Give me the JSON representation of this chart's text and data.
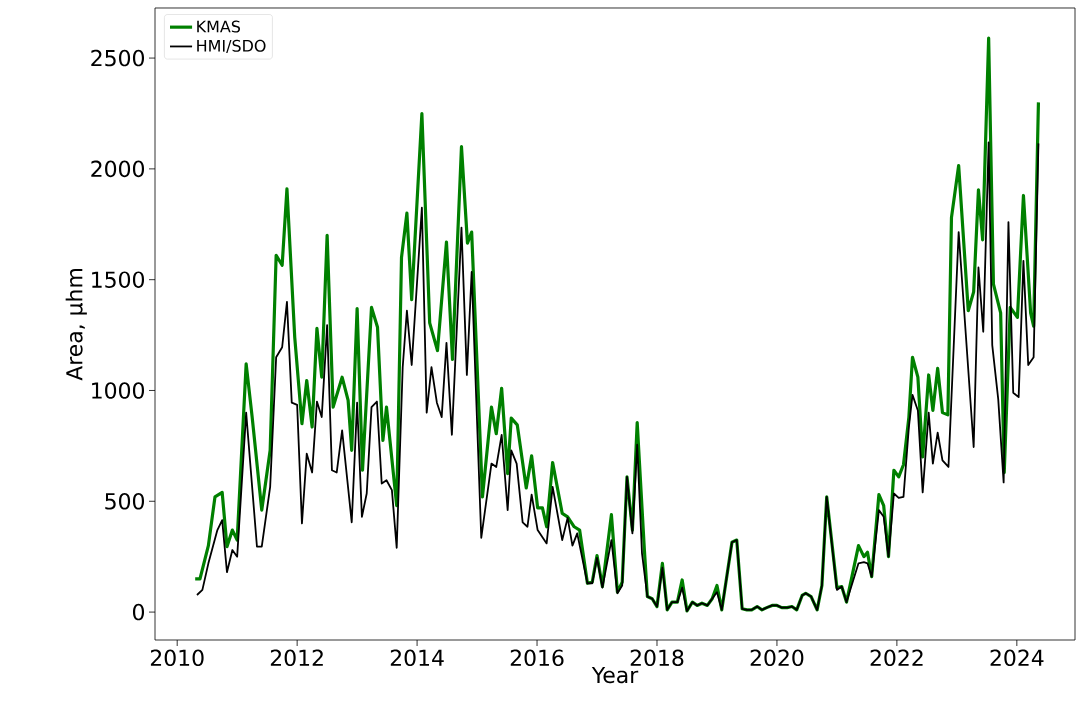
{
  "chart_data": {
    "type": "line",
    "xlabel": "Year",
    "ylabel": "Area, μhm",
    "xlim": [
      2009.63,
      2024.97
    ],
    "ylim": [
      -126,
      2726
    ],
    "xticks": [
      2010,
      2012,
      2014,
      2016,
      2018,
      2020,
      2022,
      2024
    ],
    "yticks": [
      0,
      500,
      1000,
      1500,
      2000,
      2500
    ],
    "grid": false,
    "legend": "top left",
    "marker": "none",
    "line_style": "solid",
    "series": [
      {
        "name": "KMAS",
        "color": "#008000",
        "x": [
          2010.3,
          2010.38,
          2010.52,
          2010.63,
          2010.75,
          2010.83,
          2010.92,
          2011.0,
          2011.15,
          2011.25,
          2011.41,
          2011.55,
          2011.65,
          2011.75,
          2011.83,
          2011.96,
          2012.08,
          2012.16,
          2012.25,
          2012.33,
          2012.41,
          2012.5,
          2012.6,
          2012.75,
          2012.85,
          2012.91,
          2013.0,
          2013.09,
          2013.24,
          2013.34,
          2013.43,
          2013.49,
          2013.66,
          2013.74,
          2013.83,
          2013.91,
          2014.08,
          2014.21,
          2014.34,
          2014.49,
          2014.59,
          2014.74,
          2014.84,
          2014.91,
          2015.09,
          2015.24,
          2015.32,
          2015.41,
          2015.51,
          2015.57,
          2015.67,
          2015.82,
          2015.91,
          2016.01,
          2016.09,
          2016.16,
          2016.26,
          2016.42,
          2016.51,
          2016.62,
          2016.71,
          2016.84,
          2016.92,
          2017.0,
          2017.09,
          2017.24,
          2017.34,
          2017.42,
          2017.5,
          2017.59,
          2017.67,
          2017.79,
          2017.84,
          2017.92,
          2018.0,
          2018.09,
          2018.17,
          2018.25,
          2018.34,
          2018.42,
          2018.5,
          2018.59,
          2018.67,
          2018.75,
          2018.84,
          2018.92,
          2019.0,
          2019.08,
          2019.25,
          2019.33,
          2019.42,
          2019.5,
          2019.58,
          2019.67,
          2019.75,
          2019.83,
          2019.92,
          2020.0,
          2020.08,
          2020.17,
          2020.25,
          2020.33,
          2020.42,
          2020.48,
          2020.57,
          2020.67,
          2020.75,
          2020.83,
          2021.0,
          2021.08,
          2021.16,
          2021.36,
          2021.45,
          2021.51,
          2021.58,
          2021.7,
          2021.78,
          2021.86,
          2021.95,
          2022.03,
          2022.11,
          2022.2,
          2022.26,
          2022.35,
          2022.43,
          2022.53,
          2022.6,
          2022.68,
          2022.76,
          2022.85,
          2022.91,
          2023.03,
          2023.19,
          2023.28,
          2023.36,
          2023.43,
          2023.53,
          2023.61,
          2023.73,
          2023.79,
          2023.89,
          2024.01,
          2024.11,
          2024.23,
          2024.28,
          2024.36
        ],
        "values": [
          150,
          150,
          300,
          520,
          540,
          295,
          370,
          325,
          1120,
          880,
          460,
          730,
          1610,
          1565,
          1910,
          1240,
          850,
          1045,
          835,
          1280,
          1060,
          1700,
          925,
          1060,
          955,
          730,
          1370,
          640,
          1375,
          1285,
          775,
          925,
          480,
          1600,
          1800,
          1410,
          2250,
          1305,
          1180,
          1670,
          1140,
          2100,
          1665,
          1715,
          520,
          925,
          805,
          1010,
          625,
          875,
          845,
          560,
          705,
          470,
          470,
          385,
          675,
          445,
          430,
          385,
          370,
          130,
          135,
          255,
          115,
          440,
          90,
          135,
          610,
          370,
          855,
          280,
          70,
          60,
          25,
          220,
          10,
          45,
          45,
          145,
          5,
          45,
          30,
          40,
          30,
          60,
          120,
          10,
          315,
          325,
          15,
          10,
          10,
          25,
          10,
          20,
          30,
          30,
          20,
          20,
          25,
          10,
          75,
          85,
          70,
          10,
          120,
          520,
          110,
          115,
          45,
          300,
          250,
          270,
          160,
          530,
          480,
          250,
          640,
          610,
          665,
          880,
          1150,
          1060,
          700,
          1070,
          910,
          1100,
          900,
          890,
          1780,
          2015,
          1360,
          1445,
          1905,
          1680,
          2590,
          1480,
          1350,
          630,
          1375,
          1330,
          1880,
          1350,
          1290,
          2300
        ]
      },
      {
        "name": "HMI/SDO",
        "color": "#000000",
        "x": [
          2010.33,
          2010.42,
          2010.52,
          2010.67,
          2010.75,
          2010.83,
          2010.92,
          2011.0,
          2011.15,
          2011.33,
          2011.41,
          2011.55,
          2011.65,
          2011.75,
          2011.83,
          2011.91,
          2012.0,
          2012.08,
          2012.16,
          2012.25,
          2012.33,
          2012.41,
          2012.5,
          2012.58,
          2012.66,
          2012.75,
          2012.91,
          2013.0,
          2013.08,
          2013.16,
          2013.24,
          2013.33,
          2013.41,
          2013.49,
          2013.58,
          2013.66,
          2013.76,
          2013.83,
          2013.91,
          2014.08,
          2014.16,
          2014.24,
          2014.33,
          2014.41,
          2014.49,
          2014.58,
          2014.74,
          2014.83,
          2014.91,
          2015.07,
          2015.24,
          2015.32,
          2015.41,
          2015.51,
          2015.57,
          2015.66,
          2015.76,
          2015.84,
          2015.91,
          2016.01,
          2016.16,
          2016.26,
          2016.42,
          2016.51,
          2016.59,
          2016.67,
          2016.84,
          2016.92,
          2017.0,
          2017.09,
          2017.24,
          2017.34,
          2017.42,
          2017.5,
          2017.59,
          2017.67,
          2017.75,
          2017.84,
          2017.92,
          2018.0,
          2018.09,
          2018.17,
          2018.25,
          2018.34,
          2018.42,
          2018.5,
          2018.59,
          2018.67,
          2018.75,
          2018.84,
          2018.92,
          2019.0,
          2019.08,
          2019.25,
          2019.33,
          2019.42,
          2019.5,
          2019.58,
          2019.67,
          2019.75,
          2019.83,
          2019.92,
          2020.0,
          2020.08,
          2020.17,
          2020.25,
          2020.33,
          2020.42,
          2020.48,
          2020.57,
          2020.67,
          2020.75,
          2020.83,
          2021.0,
          2021.08,
          2021.16,
          2021.36,
          2021.45,
          2021.51,
          2021.58,
          2021.7,
          2021.78,
          2021.86,
          2021.95,
          2022.03,
          2022.11,
          2022.2,
          2022.26,
          2022.35,
          2022.43,
          2022.53,
          2022.6,
          2022.68,
          2022.76,
          2022.86,
          2023.03,
          2023.28,
          2023.36,
          2023.44,
          2023.53,
          2023.59,
          2023.69,
          2023.78,
          2023.86,
          2023.94,
          2024.03,
          2024.11,
          2024.19,
          2024.28,
          2024.36
        ],
        "values": [
          77,
          100,
          220,
          370,
          415,
          180,
          280,
          250,
          900,
          295,
          295,
          565,
          1150,
          1195,
          1400,
          945,
          935,
          400,
          715,
          630,
          950,
          880,
          1295,
          640,
          630,
          820,
          405,
          945,
          430,
          535,
          925,
          950,
          580,
          595,
          550,
          290,
          1105,
          1360,
          1115,
          1825,
          900,
          1105,
          945,
          880,
          1215,
          800,
          1735,
          1070,
          1535,
          335,
          670,
          655,
          800,
          460,
          730,
          670,
          405,
          385,
          530,
          370,
          310,
          565,
          325,
          425,
          300,
          355,
          130,
          130,
          245,
          110,
          325,
          85,
          120,
          610,
          355,
          755,
          265,
          70,
          60,
          25,
          200,
          10,
          45,
          45,
          110,
          5,
          45,
          30,
          40,
          30,
          60,
          90,
          10,
          315,
          325,
          15,
          10,
          10,
          25,
          10,
          20,
          30,
          30,
          20,
          20,
          25,
          10,
          75,
          85,
          70,
          10,
          120,
          520,
          100,
          115,
          45,
          220,
          225,
          220,
          160,
          460,
          430,
          250,
          535,
          515,
          520,
          835,
          980,
          910,
          540,
          900,
          670,
          810,
          685,
          655,
          1715,
          745,
          1555,
          1265,
          2120,
          1205,
          960,
          585,
          1760,
          990,
          970,
          1585,
          1115,
          1150,
          2115
        ]
      }
    ]
  }
}
